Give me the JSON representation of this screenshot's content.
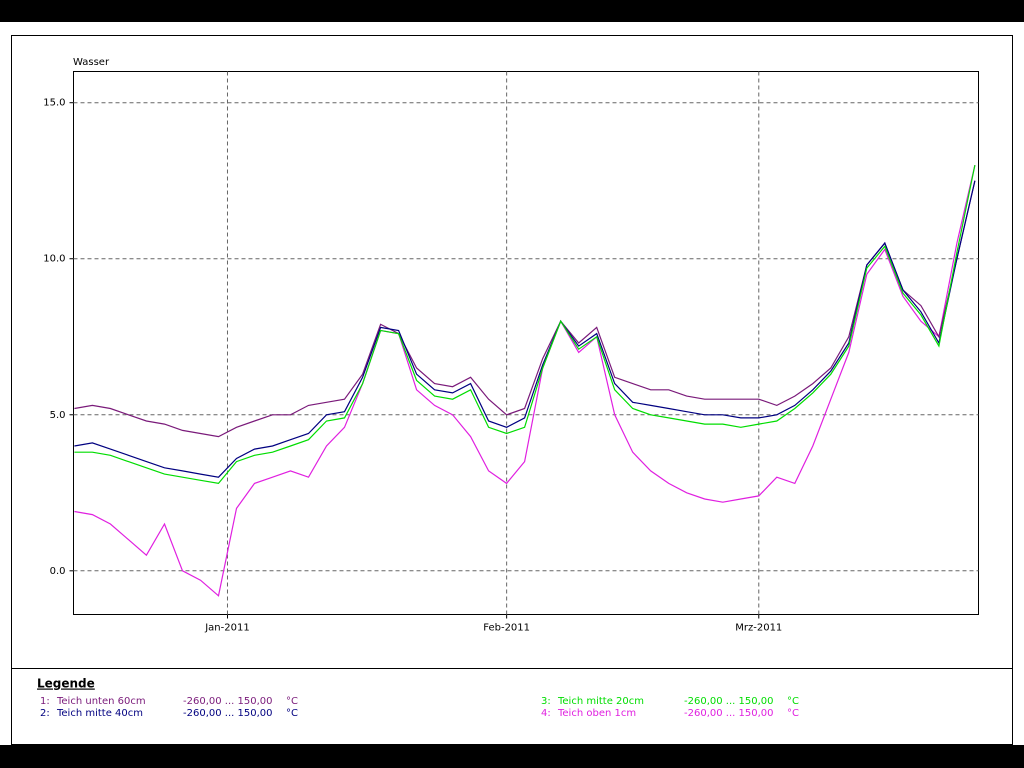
{
  "chart_data": {
    "type": "line",
    "ylabel": "Wasser",
    "x": [
      -17,
      -15,
      -13,
      -11,
      -9,
      -7,
      -5,
      -3,
      -1,
      1,
      3,
      5,
      7,
      9,
      11,
      13,
      15,
      17,
      19,
      21,
      23,
      25,
      27,
      29,
      31,
      33,
      35,
      37,
      39,
      41,
      43,
      45,
      47,
      49,
      51,
      53,
      55,
      57,
      59,
      61,
      63,
      65,
      67,
      69,
      71,
      73,
      75,
      77,
      79,
      81,
      83
    ],
    "xlim": [
      -17.1,
      83.4
    ],
    "xticks": [
      {
        "value": 0,
        "label": "Jan-2011"
      },
      {
        "value": 31,
        "label": "Feb-2011"
      },
      {
        "value": 59,
        "label": "Mrz-2011"
      }
    ],
    "ylim": [
      -1.4,
      16.0
    ],
    "yticks": [
      {
        "value": 0,
        "label": "0.0"
      },
      {
        "value": 5,
        "label": "5.0"
      },
      {
        "value": 10,
        "label": "10.0"
      },
      {
        "value": 15,
        "label": "15.0"
      }
    ],
    "grid": true,
    "legend_title": "Legende",
    "series": [
      {
        "key": "1:",
        "name": "Teich unten 60cm",
        "range": "-260,00 ... 150,00",
        "unit": "°C",
        "color": "#7a1a7a",
        "values": [
          5.2,
          5.3,
          5.2,
          5.0,
          4.8,
          4.7,
          4.5,
          4.4,
          4.3,
          4.6,
          4.8,
          5.0,
          5.0,
          5.3,
          5.4,
          5.5,
          6.3,
          7.9,
          7.6,
          6.5,
          6.0,
          5.9,
          6.2,
          5.5,
          5.0,
          5.2,
          6.8,
          8.0,
          7.3,
          7.8,
          6.2,
          6.0,
          5.8,
          5.8,
          5.6,
          5.5,
          5.5,
          5.5,
          5.5,
          5.3,
          5.6,
          6.0,
          6.5,
          7.5,
          9.8,
          10.5,
          9.0,
          8.5,
          7.5,
          10.0,
          12.5
        ]
      },
      {
        "key": "2:",
        "name": "Teich mitte 40cm",
        "range": "-260,00 ... 150,00",
        "unit": "°C",
        "color": "#000080",
        "values": [
          4.0,
          4.1,
          3.9,
          3.7,
          3.5,
          3.3,
          3.2,
          3.1,
          3.0,
          3.6,
          3.9,
          4.0,
          4.2,
          4.4,
          5.0,
          5.1,
          6.2,
          7.8,
          7.7,
          6.3,
          5.8,
          5.7,
          6.0,
          4.8,
          4.6,
          4.9,
          6.6,
          8.0,
          7.2,
          7.6,
          6.0,
          5.4,
          5.3,
          5.2,
          5.1,
          5.0,
          5.0,
          4.9,
          4.9,
          5.0,
          5.3,
          5.8,
          6.4,
          7.3,
          9.8,
          10.5,
          9.0,
          8.3,
          7.3,
          10.0,
          12.5
        ]
      },
      {
        "key": "3:",
        "name": "Teich mitte 20cm",
        "range": "-260,00 ... 150,00",
        "unit": "°C",
        "color": "#00dd00",
        "values": [
          3.8,
          3.8,
          3.7,
          3.5,
          3.3,
          3.1,
          3.0,
          2.9,
          2.8,
          3.5,
          3.7,
          3.8,
          4.0,
          4.2,
          4.8,
          4.9,
          6.0,
          7.7,
          7.6,
          6.1,
          5.6,
          5.5,
          5.8,
          4.6,
          4.4,
          4.6,
          6.5,
          8.0,
          7.1,
          7.5,
          5.8,
          5.2,
          5.0,
          4.9,
          4.8,
          4.7,
          4.7,
          4.6,
          4.7,
          4.8,
          5.2,
          5.7,
          6.3,
          7.2,
          9.7,
          10.4,
          8.9,
          8.2,
          7.2,
          10.2,
          13.0
        ]
      },
      {
        "key": "4:",
        "name": "Teich oben 1cm",
        "range": "-260,00 ... 150,00",
        "unit": "°C",
        "color": "#e020e0",
        "values": [
          1.9,
          1.8,
          1.5,
          1.0,
          0.5,
          1.5,
          0.0,
          -0.3,
          -0.8,
          2.0,
          2.8,
          3.0,
          3.2,
          3.0,
          4.0,
          4.6,
          6.0,
          7.7,
          7.6,
          5.8,
          5.3,
          5.0,
          4.3,
          3.2,
          2.8,
          3.5,
          6.5,
          8.0,
          7.0,
          7.5,
          5.0,
          3.8,
          3.2,
          2.8,
          2.5,
          2.3,
          2.2,
          2.3,
          2.4,
          3.0,
          2.8,
          4.0,
          5.5,
          7.0,
          9.5,
          10.3,
          8.8,
          8.0,
          7.5,
          10.5,
          13.0
        ]
      }
    ]
  }
}
